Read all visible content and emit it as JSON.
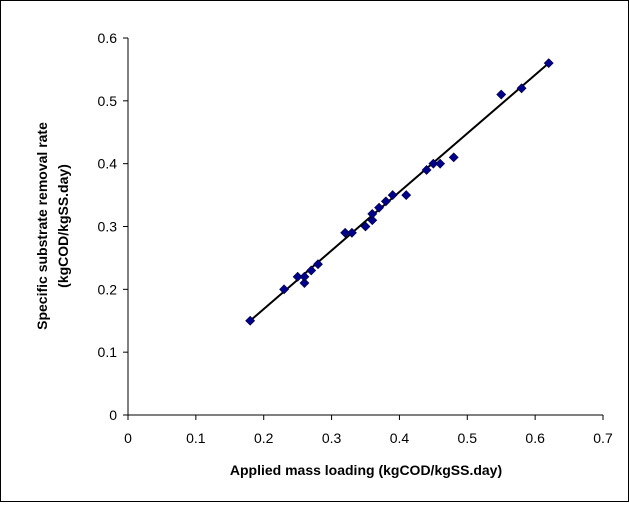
{
  "chart_data": {
    "type": "scatter",
    "title": "",
    "xlabel": "Applied mass loading (kgCOD/kgSS.day)",
    "ylabel_line1": "Specific substrate removal rate",
    "ylabel_line2": "(kgCOD/kgSS.day)",
    "xlim": [
      0,
      0.7
    ],
    "ylim": [
      0,
      0.6
    ],
    "x_ticks": [
      "0",
      "0.1",
      "0.2",
      "0.3",
      "0.4",
      "0.5",
      "0.6",
      "0.7"
    ],
    "y_ticks": [
      "0",
      "0.1",
      "0.2",
      "0.3",
      "0.4",
      "0.5",
      "0.6"
    ],
    "grid": false,
    "marker": "diamond",
    "marker_color": "#00008B",
    "trendline_color": "#000000",
    "points": [
      {
        "x": 0.18,
        "y": 0.15
      },
      {
        "x": 0.23,
        "y": 0.2
      },
      {
        "x": 0.25,
        "y": 0.22
      },
      {
        "x": 0.26,
        "y": 0.21
      },
      {
        "x": 0.26,
        "y": 0.22
      },
      {
        "x": 0.27,
        "y": 0.23
      },
      {
        "x": 0.28,
        "y": 0.24
      },
      {
        "x": 0.32,
        "y": 0.29
      },
      {
        "x": 0.33,
        "y": 0.29
      },
      {
        "x": 0.35,
        "y": 0.3
      },
      {
        "x": 0.36,
        "y": 0.31
      },
      {
        "x": 0.36,
        "y": 0.32
      },
      {
        "x": 0.37,
        "y": 0.33
      },
      {
        "x": 0.38,
        "y": 0.34
      },
      {
        "x": 0.39,
        "y": 0.35
      },
      {
        "x": 0.41,
        "y": 0.35
      },
      {
        "x": 0.44,
        "y": 0.39
      },
      {
        "x": 0.45,
        "y": 0.4
      },
      {
        "x": 0.46,
        "y": 0.4
      },
      {
        "x": 0.48,
        "y": 0.41
      },
      {
        "x": 0.55,
        "y": 0.51
      },
      {
        "x": 0.58,
        "y": 0.52
      },
      {
        "x": 0.62,
        "y": 0.56
      }
    ],
    "trendline": {
      "x": [
        0.18,
        0.62
      ],
      "y": [
        0.15,
        0.56
      ]
    }
  }
}
